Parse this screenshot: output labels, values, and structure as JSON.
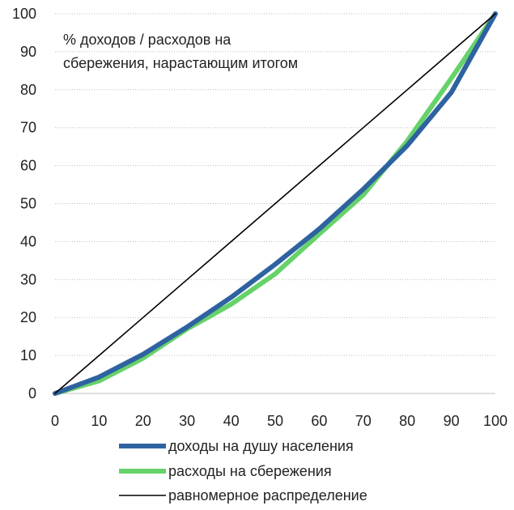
{
  "chart_data": {
    "type": "line",
    "title": "",
    "xlabel": "",
    "ylabel": "",
    "xlim": [
      0,
      100
    ],
    "ylim": [
      0,
      100
    ],
    "x_ticks": [
      0,
      10,
      20,
      30,
      40,
      50,
      60,
      70,
      80,
      90,
      100
    ],
    "y_ticks": [
      0,
      10,
      20,
      30,
      40,
      50,
      60,
      70,
      80,
      90,
      100
    ],
    "grid": "horizontal dotted",
    "legend_placement": "bottom",
    "annotation": {
      "line1": "% доходов / расходов на",
      "line2": "сбережения, нарастающим итогом"
    },
    "x": [
      0,
      10,
      20,
      30,
      40,
      50,
      60,
      70,
      80,
      90,
      100
    ],
    "series": [
      {
        "name": "доходы на душу населения",
        "color": "#2e62a0",
        "values": [
          0,
          4.3,
          10.3,
          17.5,
          25.3,
          34,
          43.3,
          53.8,
          65.3,
          79.3,
          100
        ]
      },
      {
        "name": "расходы на сбережения",
        "color": "#66d26a",
        "values": [
          0,
          3.3,
          9.3,
          17,
          23.5,
          31.5,
          42,
          52.3,
          66.5,
          83,
          100
        ]
      },
      {
        "name": "равномерное распределение",
        "color": "#000000",
        "values": [
          0,
          10,
          20,
          30,
          40,
          50,
          60,
          70,
          80,
          90,
          100
        ]
      }
    ]
  }
}
